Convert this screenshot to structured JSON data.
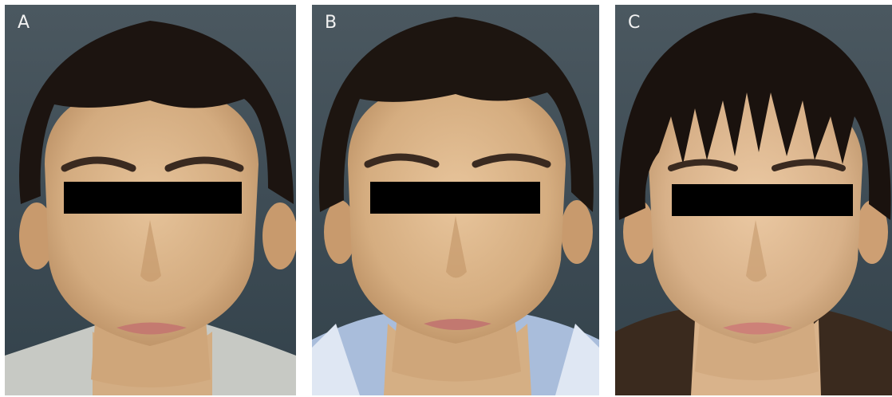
{
  "figure": {
    "panels": [
      {
        "label": "A",
        "shirt_color": "#b9bcb7"
      },
      {
        "label": "B",
        "shirt_color": "#9fb3d3"
      },
      {
        "label": "C",
        "shirt_color": "#3a2a1e"
      }
    ],
    "colors": {
      "background": "#3c4a53",
      "skin": "#d9b48a",
      "hair": "#1c1410",
      "privacy_bar": "#000000"
    }
  }
}
